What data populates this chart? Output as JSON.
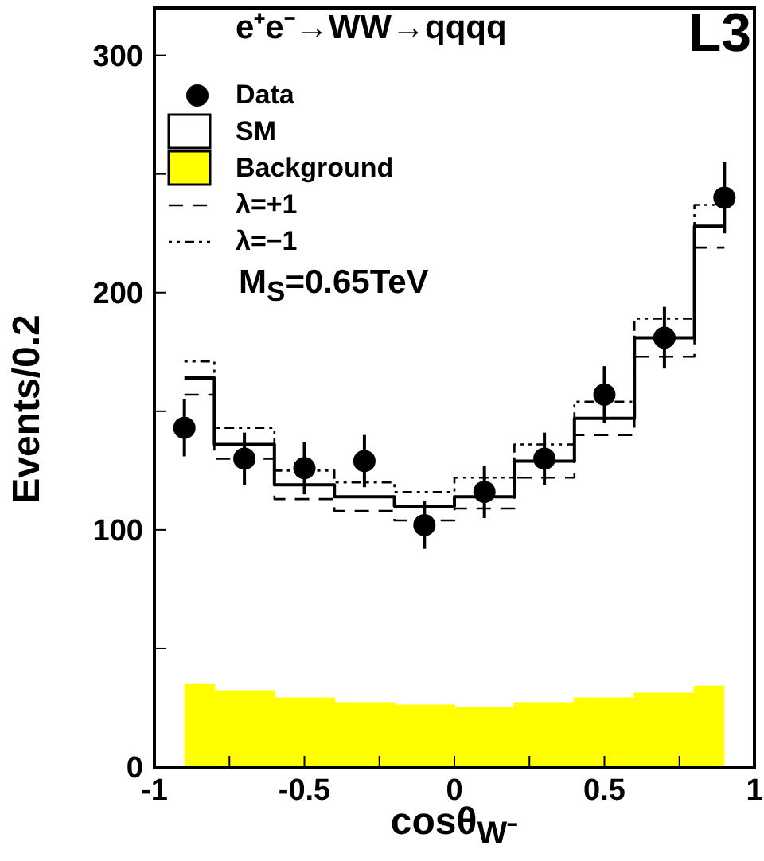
{
  "chart_data": {
    "type": "step",
    "title": "e⁺e⁻→WW→qqqq",
    "xlabel": "cosθ$_{W⁻}$",
    "ylabel": "Events/0.2",
    "annotations": [
      "L3",
      "M$_{S}$=0.65TeV"
    ],
    "x": [
      -0.9,
      -0.7,
      -0.5,
      -0.3,
      -0.1,
      0.1,
      0.3,
      0.5,
      0.7,
      0.9
    ],
    "series": [
      {
        "name": "Data",
        "type": "scatter",
        "color": "#000000",
        "marker": "circle",
        "values": [
          143,
          130,
          126,
          129,
          102,
          116,
          130,
          157,
          181,
          240
        ],
        "errors": [
          12,
          11,
          11,
          11,
          10,
          11,
          11,
          12,
          13,
          15
        ]
      },
      {
        "name": "SM",
        "color": "#000000",
        "line_style": "solid",
        "values": [
          164,
          136,
          119,
          114,
          110,
          114,
          129,
          147,
          181,
          228
        ]
      },
      {
        "name": "Background",
        "type": "area",
        "color": "#ffff00",
        "values": [
          35,
          32,
          29,
          27,
          26,
          25,
          27,
          29,
          31,
          34
        ]
      },
      {
        "name": "λ=+1",
        "color": "#000000",
        "line_style": "dashed",
        "values": [
          157,
          130,
          113,
          108,
          104,
          109,
          122,
          140,
          173,
          219
        ]
      },
      {
        "name": "λ=−1",
        "color": "#000000",
        "line_style": "dotted",
        "values": [
          171,
          143,
          125,
          120,
          116,
          122,
          136,
          154,
          189,
          237
        ]
      }
    ],
    "xlim": [
      -1,
      1
    ],
    "xticks": [
      -1,
      {
        "value": -0.75,
        "label": null
      },
      -0.5,
      {
        "value": -0.25,
        "label": null
      },
      0,
      {
        "value": 0.25,
        "label": null
      },
      0.5,
      {
        "value": 0.75,
        "label": null
      },
      1
    ],
    "ylim": [
      0,
      320
    ],
    "yticks": [
      0,
      {
        "value": 50,
        "label": null
      },
      100,
      {
        "value": 150,
        "label": null
      },
      200,
      {
        "value": 250,
        "label": null
      },
      300
    ],
    "grid": false,
    "legend": "top left"
  }
}
